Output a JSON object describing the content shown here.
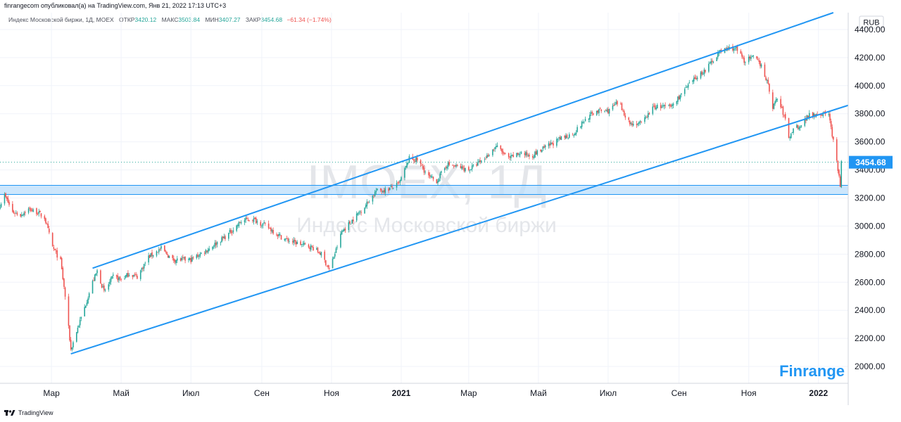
{
  "header": {
    "publisher": "finrangecom опубликовал(а) на TradingView.com, Янв 21, 2022 17:13 UTC+3",
    "symbol": "Индекс Московской биржи, 1Д, MOEX",
    "open_label": "ОТКР",
    "open_value": "3420.12",
    "high_label": "МАКС",
    "high_value": "3503.84",
    "low_label": "МИН",
    "low_value": "3407.27",
    "close_label": "ЗАКР",
    "close_value": "3454.68",
    "change": "−61.34 (−1.74%)"
  },
  "watermark": {
    "ticker": "IMOEX, 1Д",
    "name": "Индекс Московской биржи"
  },
  "brand": "Finrange",
  "footer": {
    "logo_text": "TradingView"
  },
  "colors": {
    "up": "#26a69a",
    "down": "#ef5350",
    "trend": "#2196f3",
    "zone_fill": "#bbdefb",
    "price_label_bg": "#2196f3"
  },
  "chart_data": {
    "type": "candlestick",
    "currency": "RUB",
    "ylim": [
      1880,
      4520
    ],
    "y_ticks": [
      2000,
      2200,
      2400,
      2600,
      2800,
      3000,
      3200,
      3400,
      3600,
      3800,
      4000,
      4200,
      4400
    ],
    "y_tick_labels": [
      "2000.00",
      "2200.00",
      "2400.00",
      "2600.00",
      "2800.00",
      "3000.00",
      "3200.00",
      "3400.00",
      "3600.00",
      "3800.00",
      "4000.00",
      "4200.00",
      "4400.00"
    ],
    "x_range": [
      "2020-01-16",
      "2022-01-27"
    ],
    "x_ticks": [
      {
        "date": "2020-03-01",
        "label": "Мар",
        "bold": false
      },
      {
        "date": "2020-05-01",
        "label": "Май",
        "bold": false
      },
      {
        "date": "2020-07-01",
        "label": "Июл",
        "bold": false
      },
      {
        "date": "2020-09-01",
        "label": "Сен",
        "bold": false
      },
      {
        "date": "2020-11-01",
        "label": "Ноя",
        "bold": false
      },
      {
        "date": "2021-01-01",
        "label": "2021",
        "bold": true
      },
      {
        "date": "2021-03-01",
        "label": "Мар",
        "bold": false
      },
      {
        "date": "2021-05-01",
        "label": "Май",
        "bold": false
      },
      {
        "date": "2021-07-01",
        "label": "Июл",
        "bold": false
      },
      {
        "date": "2021-09-01",
        "label": "Сен",
        "bold": false
      },
      {
        "date": "2021-11-01",
        "label": "Ноя",
        "bold": false
      },
      {
        "date": "2022-01-01",
        "label": "2022",
        "bold": true
      }
    ],
    "last_price": 3454.68,
    "last_price_label": "3454.68",
    "support_zone": [
      3225,
      3290
    ],
    "trendlines": [
      {
        "name": "channel-top",
        "points": [
          [
            "2020-04-06",
            2700
          ],
          [
            "2022-01-14",
            4520
          ]
        ]
      },
      {
        "name": "channel-bottom",
        "points": [
          [
            "2020-03-18",
            2090
          ],
          [
            "2022-01-27",
            3860
          ]
        ]
      }
    ],
    "price_path": [
      [
        "2020-01-16",
        3150
      ],
      [
        "2020-01-20",
        3220
      ],
      [
        "2020-01-27",
        3100
      ],
      [
        "2020-02-03",
        3080
      ],
      [
        "2020-02-10",
        3120
      ],
      [
        "2020-02-17",
        3100
      ],
      [
        "2020-02-24",
        3060
      ],
      [
        "2020-03-02",
        2850
      ],
      [
        "2020-03-09",
        2750
      ],
      [
        "2020-03-13",
        2500
      ],
      [
        "2020-03-18",
        2120
      ],
      [
        "2020-03-23",
        2250
      ],
      [
        "2020-03-30",
        2420
      ],
      [
        "2020-04-06",
        2600
      ],
      [
        "2020-04-10",
        2680
      ],
      [
        "2020-04-16",
        2530
      ],
      [
        "2020-04-24",
        2640
      ],
      [
        "2020-05-01",
        2620
      ],
      [
        "2020-05-08",
        2660
      ],
      [
        "2020-05-15",
        2640
      ],
      [
        "2020-05-25",
        2780
      ],
      [
        "2020-06-05",
        2840
      ],
      [
        "2020-06-15",
        2760
      ],
      [
        "2020-07-01",
        2760
      ],
      [
        "2020-07-15",
        2830
      ],
      [
        "2020-08-01",
        2930
      ],
      [
        "2020-08-15",
        3040
      ],
      [
        "2020-08-24",
        3050
      ],
      [
        "2020-09-05",
        3000
      ],
      [
        "2020-09-20",
        2910
      ],
      [
        "2020-10-01",
        2880
      ],
      [
        "2020-10-15",
        2850
      ],
      [
        "2020-10-23",
        2800
      ],
      [
        "2020-10-30",
        2690
      ],
      [
        "2020-11-05",
        2830
      ],
      [
        "2020-11-10",
        2960
      ],
      [
        "2020-11-20",
        3050
      ],
      [
        "2020-12-01",
        3150
      ],
      [
        "2020-12-10",
        3250
      ],
      [
        "2020-12-20",
        3260
      ],
      [
        "2020-12-30",
        3300
      ],
      [
        "2021-01-08",
        3480
      ],
      [
        "2021-01-15",
        3470
      ],
      [
        "2021-01-25",
        3350
      ],
      [
        "2021-02-01",
        3320
      ],
      [
        "2021-02-10",
        3440
      ],
      [
        "2021-02-20",
        3420
      ],
      [
        "2021-03-01",
        3400
      ],
      [
        "2021-03-15",
        3480
      ],
      [
        "2021-03-25",
        3570
      ],
      [
        "2021-04-05",
        3480
      ],
      [
        "2021-04-15",
        3520
      ],
      [
        "2021-04-25",
        3500
      ],
      [
        "2021-05-05",
        3550
      ],
      [
        "2021-05-20",
        3620
      ],
      [
        "2021-06-01",
        3660
      ],
      [
        "2021-06-10",
        3750
      ],
      [
        "2021-06-20",
        3820
      ],
      [
        "2021-07-01",
        3820
      ],
      [
        "2021-07-10",
        3880
      ],
      [
        "2021-07-20",
        3730
      ],
      [
        "2021-07-30",
        3730
      ],
      [
        "2021-08-10",
        3850
      ],
      [
        "2021-08-25",
        3850
      ],
      [
        "2021-09-05",
        3960
      ],
      [
        "2021-09-15",
        4050
      ],
      [
        "2021-09-25",
        4120
      ],
      [
        "2021-10-05",
        4230
      ],
      [
        "2021-10-12",
        4260
      ],
      [
        "2021-10-20",
        4270
      ],
      [
        "2021-10-28",
        4180
      ],
      [
        "2021-11-05",
        4200
      ],
      [
        "2021-11-12",
        4150
      ],
      [
        "2021-11-18",
        4000
      ],
      [
        "2021-11-22",
        3850
      ],
      [
        "2021-11-26",
        3910
      ],
      [
        "2021-11-30",
        3830
      ],
      [
        "2021-12-03",
        3760
      ],
      [
        "2021-12-06",
        3620
      ],
      [
        "2021-12-10",
        3700
      ],
      [
        "2021-12-17",
        3720
      ],
      [
        "2021-12-24",
        3800
      ],
      [
        "2021-12-30",
        3800
      ],
      [
        "2022-01-10",
        3800
      ],
      [
        "2022-01-14",
        3600
      ],
      [
        "2022-01-18",
        3400
      ],
      [
        "2022-01-20",
        3290
      ],
      [
        "2022-01-21",
        3455
      ]
    ]
  }
}
